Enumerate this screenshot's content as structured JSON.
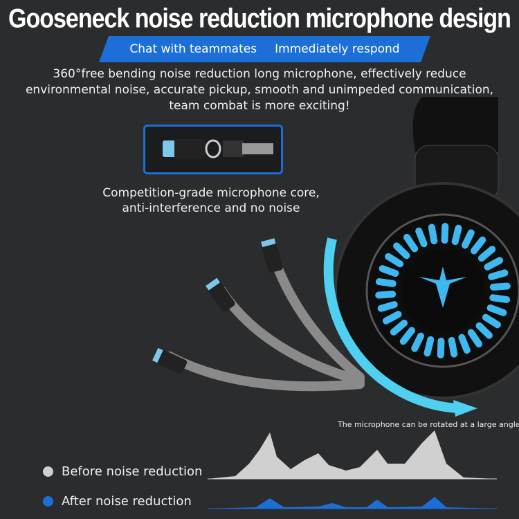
{
  "title": "Gooseneck noise reduction microphone design",
  "banner": {
    "left": "Chat with teammates",
    "right": "Immediately respond"
  },
  "description": [
    "360°free bending noise reduction long microphone, effectively reduce",
    "environmental noise, accurate pickup, smooth and unimpeded communication,",
    "team combat is more exciting!"
  ],
  "core": {
    "line1": "Competition-grade microphone core,",
    "line2": "anti-interference and no noise"
  },
  "rotate_note": "The microphone can be rotated at a large angle",
  "legend": {
    "before": "Before noise reduction",
    "after": "After noise reduction"
  },
  "colors": {
    "accent": "#1d6fd8",
    "led": "#3fb8f0",
    "before_wave": "#d0d0d0",
    "after_wave": "#1d6fd8"
  },
  "icons": {
    "logo": "winged-emblem-icon"
  }
}
